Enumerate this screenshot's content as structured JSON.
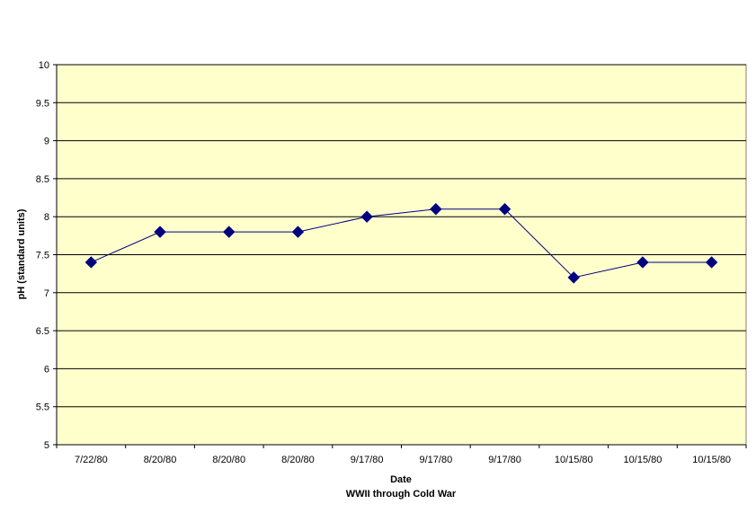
{
  "chart_data": {
    "type": "line",
    "title": "",
    "xlabel": "Date",
    "xsublabel": "WWII through Cold War",
    "ylabel": "pH (standard units)",
    "ylim": [
      5,
      10
    ],
    "ystep": 0.5,
    "ytick_labels": [
      "5",
      "5.5",
      "6",
      "6.5",
      "7",
      "7.5",
      "8",
      "8.5",
      "9",
      "9.5",
      "10"
    ],
    "grid": true,
    "legend": "none",
    "categories": [
      "7/22/80",
      "8/20/80",
      "8/20/80",
      "8/20/80",
      "9/17/80",
      "9/17/80",
      "9/17/80",
      "10/15/80",
      "10/15/80",
      "10/15/80"
    ],
    "series": [
      {
        "values": [
          7.4,
          7.8,
          7.8,
          7.8,
          8.0,
          8.1,
          8.1,
          7.2,
          7.4,
          7.4
        ]
      }
    ],
    "colors": {
      "plot_background": "#FFFFCC",
      "line": "#000080",
      "marker": "#000080",
      "gridline": "#000000"
    }
  }
}
